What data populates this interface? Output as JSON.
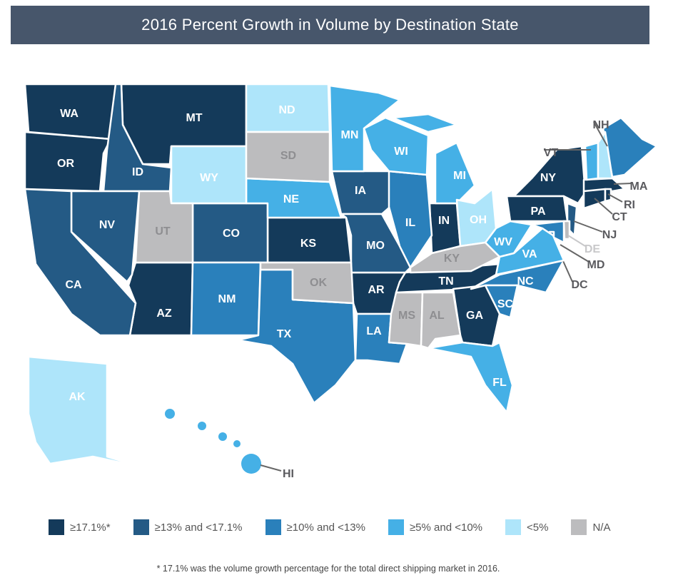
{
  "title": "2016 Percent Growth in Volume by Destination State",
  "colors": {
    "c1": "#143a5a",
    "c2": "#245a85",
    "c3": "#2a80bb",
    "c4": "#45b0e6",
    "c5": "#aee5fa",
    "na": "#bcbcbe"
  },
  "legend": [
    {
      "key": "c1",
      "label": "≥17.1%*"
    },
    {
      "key": "c2",
      "label": "≥13% and <17.1%"
    },
    {
      "key": "c3",
      "label": "≥10% and <13%"
    },
    {
      "key": "c4",
      "label": "≥5% and <10%"
    },
    {
      "key": "c5",
      "label": "<5%"
    },
    {
      "key": "na",
      "label": "N/A"
    }
  ],
  "footnote": "* 17.1% was the volume growth percentage for the total direct shipping market in 2016.",
  "states": [
    {
      "abbr": "WA",
      "cat": "c1"
    },
    {
      "abbr": "OR",
      "cat": "c1"
    },
    {
      "abbr": "MT",
      "cat": "c1"
    },
    {
      "abbr": "AZ",
      "cat": "c1"
    },
    {
      "abbr": "KS",
      "cat": "c1"
    },
    {
      "abbr": "AR",
      "cat": "c1"
    },
    {
      "abbr": "IN",
      "cat": "c1"
    },
    {
      "abbr": "TN",
      "cat": "c1"
    },
    {
      "abbr": "GA",
      "cat": "c1"
    },
    {
      "abbr": "NY",
      "cat": "c1"
    },
    {
      "abbr": "PA",
      "cat": "c1"
    },
    {
      "abbr": "MA",
      "cat": "c1"
    },
    {
      "abbr": "CT",
      "cat": "c1"
    },
    {
      "abbr": "RI",
      "cat": "c1"
    },
    {
      "abbr": "ID",
      "cat": "c2"
    },
    {
      "abbr": "NV",
      "cat": "c2"
    },
    {
      "abbr": "CA",
      "cat": "c2"
    },
    {
      "abbr": "CO",
      "cat": "c2"
    },
    {
      "abbr": "IA",
      "cat": "c2"
    },
    {
      "abbr": "MO",
      "cat": "c2"
    },
    {
      "abbr": "NJ",
      "cat": "c2"
    },
    {
      "abbr": "NM",
      "cat": "c3"
    },
    {
      "abbr": "TX",
      "cat": "c3"
    },
    {
      "abbr": "IL",
      "cat": "c3"
    },
    {
      "abbr": "LA",
      "cat": "c3"
    },
    {
      "abbr": "NC",
      "cat": "c3"
    },
    {
      "abbr": "SC",
      "cat": "c3"
    },
    {
      "abbr": "ME",
      "cat": "c3"
    },
    {
      "abbr": "MD",
      "cat": "c3"
    },
    {
      "abbr": "DC",
      "cat": "c3"
    },
    {
      "abbr": "MN",
      "cat": "c4"
    },
    {
      "abbr": "WI",
      "cat": "c4"
    },
    {
      "abbr": "MI",
      "cat": "c4"
    },
    {
      "abbr": "NE",
      "cat": "c4"
    },
    {
      "abbr": "FL",
      "cat": "c4"
    },
    {
      "abbr": "VT",
      "cat": "c4"
    },
    {
      "abbr": "WV",
      "cat": "c4"
    },
    {
      "abbr": "VA",
      "cat": "c4"
    },
    {
      "abbr": "HI",
      "cat": "c4"
    },
    {
      "abbr": "ND",
      "cat": "c5"
    },
    {
      "abbr": "WY",
      "cat": "c5"
    },
    {
      "abbr": "OH",
      "cat": "c5"
    },
    {
      "abbr": "NH",
      "cat": "c5"
    },
    {
      "abbr": "AK",
      "cat": "c5"
    },
    {
      "abbr": "UT",
      "cat": "na"
    },
    {
      "abbr": "SD",
      "cat": "na"
    },
    {
      "abbr": "OK",
      "cat": "na"
    },
    {
      "abbr": "KY",
      "cat": "na"
    },
    {
      "abbr": "MS",
      "cat": "na"
    },
    {
      "abbr": "AL",
      "cat": "na"
    },
    {
      "abbr": "DE",
      "cat": "na"
    }
  ]
}
